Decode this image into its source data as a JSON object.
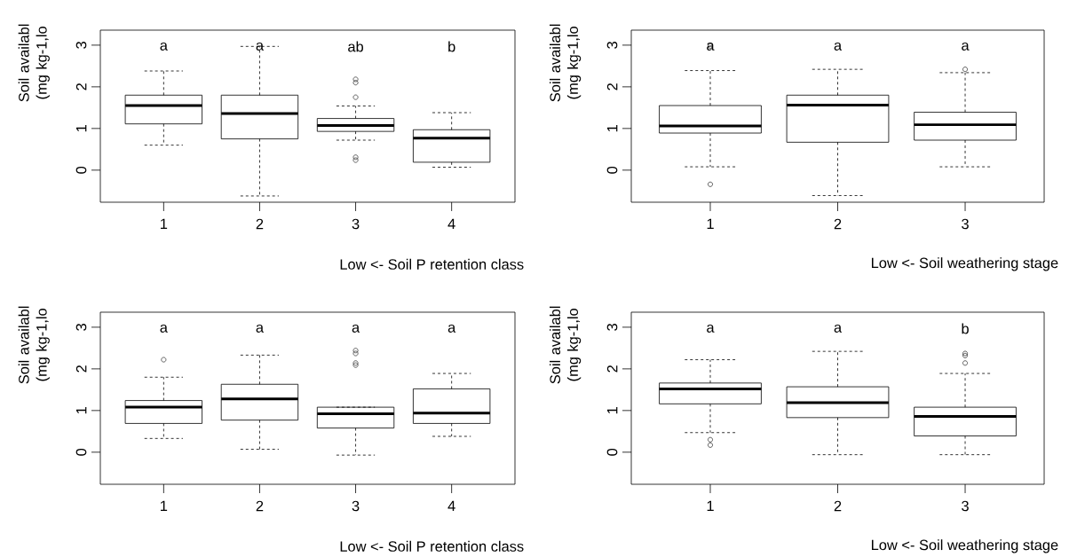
{
  "chart_data": [
    {
      "type": "box",
      "categories": [
        "1",
        "2",
        "3",
        "4"
      ],
      "xlabel": "Low <- Soil P retention class",
      "ylabel": "Soil availabl (mg kg-1,lo",
      "ylim": [
        -0.77,
        3.36
      ],
      "yticks": [
        0,
        1,
        2,
        3
      ],
      "boxes": [
        {
          "low": 0.6,
          "q1": 1.11,
          "median": 1.55,
          "q3": 1.8,
          "high": 2.38
        },
        {
          "low": -0.62,
          "q1": 0.75,
          "median": 1.36,
          "q3": 1.8,
          "high": 2.97
        },
        {
          "low": 0.72,
          "q1": 0.93,
          "median": 1.07,
          "q3": 1.24,
          "high": 1.54,
          "outliers": [
            2.18,
            2.1,
            1.75,
            0.31,
            0.24
          ]
        },
        {
          "low": 0.07,
          "q1": 0.19,
          "median": 0.77,
          "q3": 0.97,
          "high": 1.38
        }
      ],
      "annotations": [
        "a",
        "a",
        "ab",
        "b"
      ]
    },
    {
      "type": "box",
      "categories": [
        "1",
        "2",
        "3"
      ],
      "xlabel": "Low <- Soil weathering stage",
      "ylabel": "Soil availabl (mg kg-1,lo",
      "ylim": [
        -0.77,
        3.36
      ],
      "yticks": [
        0,
        1,
        2,
        3
      ],
      "boxes": [
        {
          "low": 0.08,
          "q1": 0.89,
          "median": 1.06,
          "q3": 1.55,
          "high": 2.39,
          "outliers": [
            2.98,
            -0.34
          ]
        },
        {
          "low": -0.61,
          "q1": 0.67,
          "median": 1.56,
          "q3": 1.8,
          "high": 2.42
        },
        {
          "low": 0.08,
          "q1": 0.72,
          "median": 1.09,
          "q3": 1.39,
          "high": 2.34,
          "outliers": [
            2.42
          ]
        }
      ],
      "annotations": [
        "a",
        "a",
        "a"
      ]
    },
    {
      "type": "box",
      "categories": [
        "1",
        "2",
        "3",
        "4"
      ],
      "xlabel": "Low <- Soil P retention class",
      "ylabel": "Soil availabl (mg kg-1,lo",
      "ylim": [
        -0.77,
        3.36
      ],
      "yticks": [
        0,
        1,
        2,
        3
      ],
      "boxes": [
        {
          "low": 0.33,
          "q1": 0.69,
          "median": 1.08,
          "q3": 1.24,
          "high": 1.8,
          "outliers": [
            2.22
          ]
        },
        {
          "low": 0.07,
          "q1": 0.77,
          "median": 1.28,
          "q3": 1.63,
          "high": 2.33
        },
        {
          "low": -0.07,
          "q1": 0.58,
          "median": 0.92,
          "q3": 1.08,
          "high": 1.08,
          "outliers": [
            2.44,
            2.37,
            2.14,
            2.09
          ]
        },
        {
          "low": 0.38,
          "q1": 0.69,
          "median": 0.94,
          "q3": 1.52,
          "high": 1.89
        }
      ],
      "annotations": [
        "a",
        "a",
        "a",
        "a"
      ]
    },
    {
      "type": "box",
      "categories": [
        "1",
        "2",
        "3"
      ],
      "xlabel": "Low <- Soil weathering stage",
      "ylabel": "Soil availabl (mg kg-1,lo",
      "ylim": [
        -0.77,
        3.36
      ],
      "yticks": [
        0,
        1,
        2,
        3
      ],
      "boxes": [
        {
          "low": 0.47,
          "q1": 1.16,
          "median": 1.52,
          "q3": 1.66,
          "high": 2.22,
          "outliers": [
            0.3,
            0.17
          ]
        },
        {
          "low": -0.06,
          "q1": 0.83,
          "median": 1.19,
          "q3": 1.57,
          "high": 2.42
        },
        {
          "low": -0.06,
          "q1": 0.39,
          "median": 0.86,
          "q3": 1.08,
          "high": 1.89,
          "outliers": [
            2.37,
            2.32,
            2.14
          ]
        }
      ],
      "annotations": [
        "a",
        "a",
        "b"
      ]
    }
  ]
}
